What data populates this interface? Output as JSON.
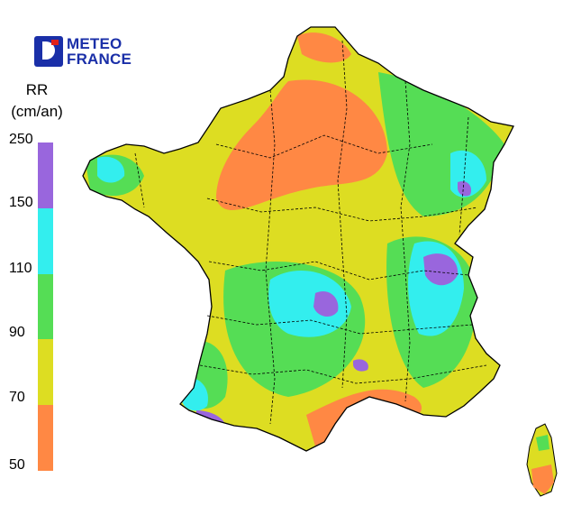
{
  "logo": {
    "line1": "METEO",
    "line2": "FRANCE"
  },
  "legend": {
    "variable": "RR",
    "unit": "(cm/an)",
    "ticks": [
      "250",
      "150",
      "110",
      "90",
      "70",
      "50"
    ],
    "classes": [
      {
        "range": "150-250",
        "color": "#9966dd"
      },
      {
        "range": "110-150",
        "color": "#33eeee"
      },
      {
        "range": "90-110",
        "color": "#55dd55"
      },
      {
        "range": "70-90",
        "color": "#dddd22"
      },
      {
        "range": "50-70",
        "color": "#ff8844"
      }
    ]
  },
  "colors": {
    "border": "#000000",
    "background": "#ffffff"
  }
}
